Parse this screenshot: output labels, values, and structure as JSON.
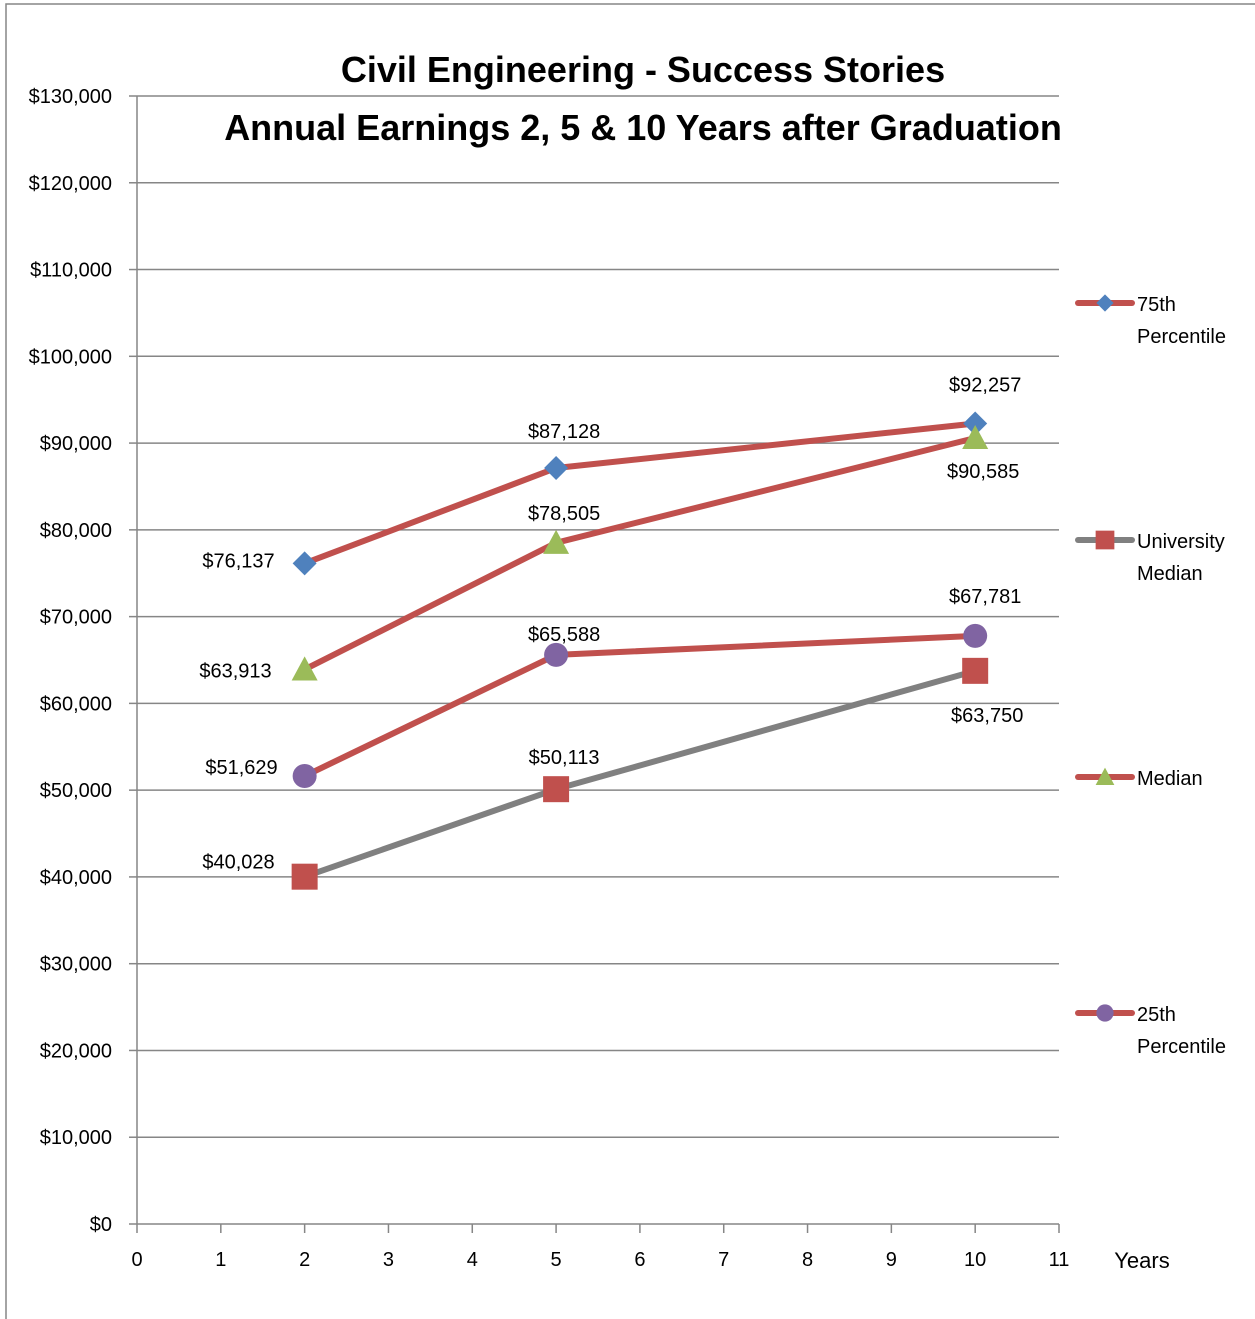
{
  "chart_data": {
    "type": "line",
    "title": "Civil Engineering - Success Stories",
    "subtitle": "Annual Earnings 2, 5 & 10 Years after Graduation",
    "xlabel": "Years",
    "ylabel": "",
    "xlim": [
      0,
      11
    ],
    "ylim": [
      0,
      130000
    ],
    "x_ticks": [
      "0",
      "1",
      "2",
      "3",
      "4",
      "5",
      "6",
      "7",
      "8",
      "9",
      "10",
      "11"
    ],
    "y_ticks": [
      "$0",
      "$10,000",
      "$20,000",
      "$30,000",
      "$40,000",
      "$50,000",
      "$60,000",
      "$70,000",
      "$80,000",
      "$90,000",
      "$100,000",
      "$110,000",
      "$120,000",
      "$130,000"
    ],
    "grid": true,
    "legend_position": "right",
    "series": [
      {
        "name": "75th Percentile",
        "legend_lines": [
          "75th",
          "Percentile"
        ],
        "line_color": "#c0504d",
        "marker": "diamond",
        "marker_color": "#4f81bd",
        "points": [
          {
            "x": 2,
            "y": 76137,
            "label": "$76,137"
          },
          {
            "x": 5,
            "y": 87128,
            "label": "$87,128"
          },
          {
            "x": 10,
            "y": 92257,
            "label": "$92,257"
          }
        ]
      },
      {
        "name": "University Median",
        "legend_lines": [
          "University",
          "Median"
        ],
        "line_color": "#808080",
        "marker": "square",
        "marker_color": "#c0504d",
        "points": [
          {
            "x": 2,
            "y": 40028,
            "label": "$40,028"
          },
          {
            "x": 5,
            "y": 50113,
            "label": "$50,113"
          },
          {
            "x": 10,
            "y": 63750,
            "label": "$63,750"
          }
        ]
      },
      {
        "name": "Median",
        "legend_lines": [
          "Median"
        ],
        "line_color": "#c0504d",
        "marker": "triangle",
        "marker_color": "#9bbb59",
        "points": [
          {
            "x": 2,
            "y": 63913,
            "label": "$63,913"
          },
          {
            "x": 5,
            "y": 78505,
            "label": "$78,505"
          },
          {
            "x": 10,
            "y": 90585,
            "label": "$90,585"
          }
        ]
      },
      {
        "name": "25th Percentile",
        "legend_lines": [
          "25th",
          "Percentile"
        ],
        "line_color": "#c0504d",
        "marker": "circle",
        "marker_color": "#8064a2",
        "points": [
          {
            "x": 2,
            "y": 51629,
            "label": "$51,629"
          },
          {
            "x": 5,
            "y": 65588,
            "label": "$65,588"
          },
          {
            "x": 10,
            "y": 67781,
            "label": "$67,781"
          }
        ]
      }
    ]
  }
}
